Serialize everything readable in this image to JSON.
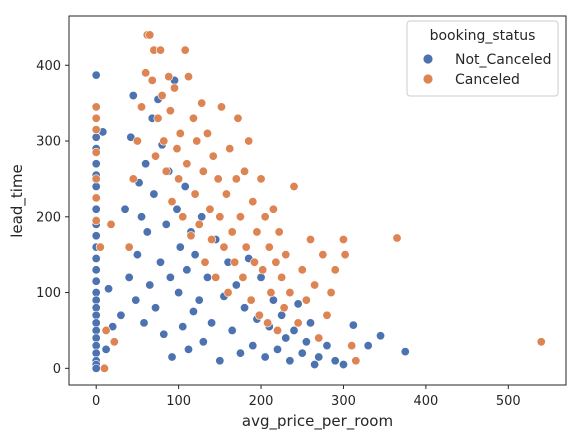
{
  "chart_data": {
    "type": "scatter",
    "title": "",
    "xlabel": "avg_price_per_room",
    "ylabel": "lead_time",
    "xlim": [
      -33,
      570
    ],
    "ylim": [
      -22,
      465
    ],
    "xticks": [
      0,
      100,
      200,
      300,
      400,
      500
    ],
    "yticks": [
      0,
      100,
      200,
      300,
      400
    ],
    "grid": false,
    "legend": {
      "title": "booking_status",
      "placement": "top-right"
    },
    "series": [
      {
        "name": "Not_Canceled",
        "color": "#4c72b0",
        "points": [
          [
            0,
            387
          ],
          [
            0,
            345
          ],
          [
            0,
            330
          ],
          [
            0,
            305
          ],
          [
            0,
            290
          ],
          [
            0,
            270
          ],
          [
            0,
            255
          ],
          [
            0,
            240
          ],
          [
            0,
            225
          ],
          [
            0,
            210
          ],
          [
            0,
            190
          ],
          [
            0,
            175
          ],
          [
            0,
            160
          ],
          [
            0,
            145
          ],
          [
            0,
            130
          ],
          [
            0,
            115
          ],
          [
            0,
            100
          ],
          [
            0,
            90
          ],
          [
            0,
            80
          ],
          [
            0,
            70
          ],
          [
            0,
            60
          ],
          [
            0,
            50
          ],
          [
            0,
            40
          ],
          [
            0,
            30
          ],
          [
            0,
            20
          ],
          [
            0,
            10
          ],
          [
            0,
            5
          ],
          [
            0,
            0
          ],
          [
            8,
            312
          ],
          [
            12,
            25
          ],
          [
            15,
            105
          ],
          [
            20,
            55
          ],
          [
            30,
            70
          ],
          [
            35,
            210
          ],
          [
            40,
            120
          ],
          [
            42,
            305
          ],
          [
            45,
            360
          ],
          [
            48,
            90
          ],
          [
            50,
            150
          ],
          [
            52,
            245
          ],
          [
            55,
            200
          ],
          [
            58,
            60
          ],
          [
            60,
            270
          ],
          [
            62,
            180
          ],
          [
            65,
            110
          ],
          [
            68,
            330
          ],
          [
            70,
            230
          ],
          [
            72,
            80
          ],
          [
            75,
            355
          ],
          [
            78,
            140
          ],
          [
            80,
            295
          ],
          [
            82,
            45
          ],
          [
            85,
            190
          ],
          [
            88,
            260
          ],
          [
            90,
            120
          ],
          [
            92,
            15
          ],
          [
            95,
            380
          ],
          [
            98,
            210
          ],
          [
            100,
            100
          ],
          [
            102,
            160
          ],
          [
            105,
            55
          ],
          [
            108,
            240
          ],
          [
            110,
            130
          ],
          [
            112,
            25
          ],
          [
            115,
            180
          ],
          [
            118,
            75
          ],
          [
            120,
            150
          ],
          [
            125,
            90
          ],
          [
            128,
            200
          ],
          [
            130,
            35
          ],
          [
            135,
            120
          ],
          [
            140,
            60
          ],
          [
            145,
            170
          ],
          [
            150,
            10
          ],
          [
            155,
            95
          ],
          [
            160,
            140
          ],
          [
            165,
            50
          ],
          [
            170,
            110
          ],
          [
            175,
            20
          ],
          [
            180,
            80
          ],
          [
            185,
            145
          ],
          [
            190,
            30
          ],
          [
            195,
            65
          ],
          [
            200,
            120
          ],
          [
            205,
            15
          ],
          [
            210,
            55
          ],
          [
            215,
            90
          ],
          [
            220,
            25
          ],
          [
            225,
            70
          ],
          [
            230,
            40
          ],
          [
            235,
            10
          ],
          [
            240,
            50
          ],
          [
            245,
            85
          ],
          [
            250,
            20
          ],
          [
            255,
            35
          ],
          [
            260,
            60
          ],
          [
            265,
            5
          ],
          [
            270,
            15
          ],
          [
            280,
            30
          ],
          [
            290,
            10
          ],
          [
            300,
            5
          ],
          [
            312,
            57
          ],
          [
            330,
            30
          ],
          [
            345,
            43
          ],
          [
            375,
            22
          ]
        ]
      },
      {
        "name": "Canceled",
        "color": "#dd8452",
        "points": [
          [
            0,
            345
          ],
          [
            0,
            330
          ],
          [
            0,
            315
          ],
          [
            0,
            285
          ],
          [
            0,
            250
          ],
          [
            0,
            225
          ],
          [
            0,
            195
          ],
          [
            5,
            160
          ],
          [
            10,
            0
          ],
          [
            12,
            50
          ],
          [
            18,
            190
          ],
          [
            22,
            35
          ],
          [
            40,
            160
          ],
          [
            45,
            250
          ],
          [
            50,
            300
          ],
          [
            55,
            345
          ],
          [
            60,
            390
          ],
          [
            62,
            440
          ],
          [
            65,
            440
          ],
          [
            68,
            380
          ],
          [
            70,
            420
          ],
          [
            72,
            280
          ],
          [
            75,
            330
          ],
          [
            78,
            420
          ],
          [
            80,
            360
          ],
          [
            82,
            300
          ],
          [
            85,
            260
          ],
          [
            88,
            385
          ],
          [
            90,
            340
          ],
          [
            92,
            220
          ],
          [
            95,
            370
          ],
          [
            98,
            290
          ],
          [
            100,
            250
          ],
          [
            102,
            310
          ],
          [
            105,
            200
          ],
          [
            108,
            420
          ],
          [
            110,
            270
          ],
          [
            112,
            385
          ],
          [
            115,
            175
          ],
          [
            118,
            330
          ],
          [
            120,
            230
          ],
          [
            122,
            300
          ],
          [
            125,
            190
          ],
          [
            128,
            350
          ],
          [
            130,
            260
          ],
          [
            132,
            140
          ],
          [
            135,
            310
          ],
          [
            138,
            210
          ],
          [
            140,
            170
          ],
          [
            142,
            280
          ],
          [
            145,
            120
          ],
          [
            148,
            250
          ],
          [
            150,
            200
          ],
          [
            152,
            345
          ],
          [
            155,
            160
          ],
          [
            158,
            230
          ],
          [
            160,
            100
          ],
          [
            162,
            290
          ],
          [
            165,
            180
          ],
          [
            168,
            140
          ],
          [
            170,
            250
          ],
          [
            172,
            330
          ],
          [
            175,
            200
          ],
          [
            178,
            120
          ],
          [
            180,
            260
          ],
          [
            182,
            160
          ],
          [
            185,
            300
          ],
          [
            188,
            90
          ],
          [
            190,
            220
          ],
          [
            192,
            140
          ],
          [
            195,
            180
          ],
          [
            198,
            70
          ],
          [
            200,
            250
          ],
          [
            202,
            130
          ],
          [
            205,
            200
          ],
          [
            208,
            60
          ],
          [
            210,
            160
          ],
          [
            212,
            100
          ],
          [
            215,
            210
          ],
          [
            218,
            140
          ],
          [
            220,
            50
          ],
          [
            222,
            180
          ],
          [
            225,
            120
          ],
          [
            228,
            80
          ],
          [
            230,
            150
          ],
          [
            235,
            100
          ],
          [
            240,
            240
          ],
          [
            245,
            60
          ],
          [
            250,
            130
          ],
          [
            255,
            90
          ],
          [
            260,
            170
          ],
          [
            265,
            110
          ],
          [
            270,
            40
          ],
          [
            275,
            150
          ],
          [
            280,
            70
          ],
          [
            285,
            100
          ],
          [
            290,
            130
          ],
          [
            300,
            170
          ],
          [
            302,
            150
          ],
          [
            310,
            30
          ],
          [
            315,
            10
          ],
          [
            365,
            172
          ],
          [
            540,
            35
          ]
        ]
      }
    ]
  }
}
